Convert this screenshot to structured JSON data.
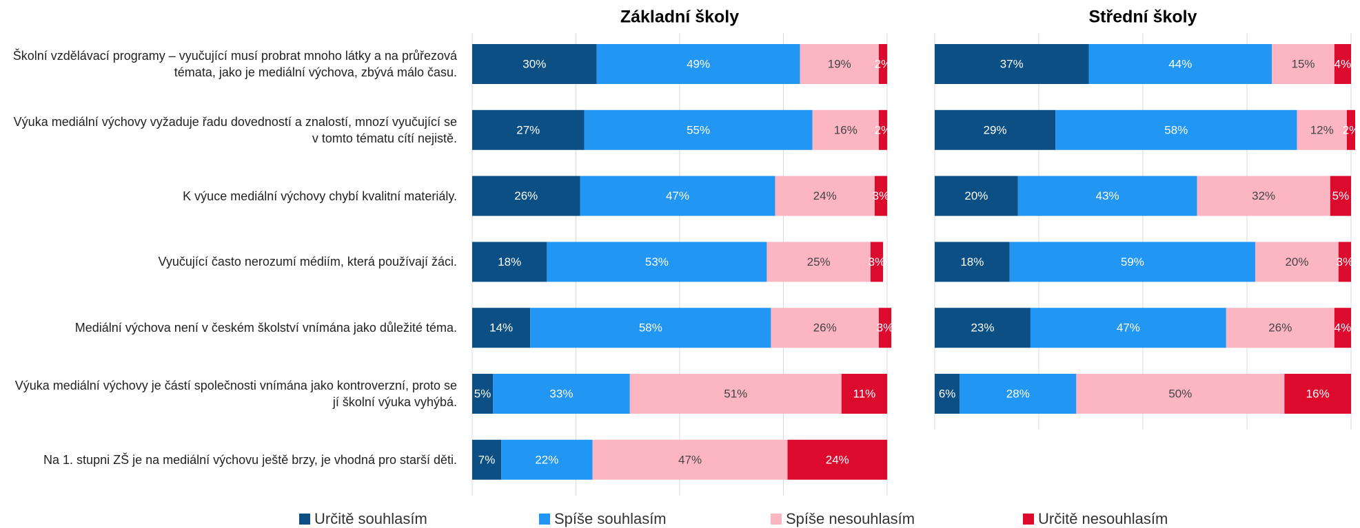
{
  "chart_data": [
    {
      "type": "stacked-bar",
      "orientation": "horizontal",
      "title": "Základní školy",
      "categories": [
        "Školní vzdělávací programy – vyučující musí probrat mnoho látky a na průřezová témata, jako je mediální výchova, zbývá málo času.",
        "Výuka mediální výchovy vyžaduje řadu dovedností a znalostí, mnozí vyučující se v tomto tématu cítí nejistě.",
        "K výuce mediální výchovy chybí kvalitní materiály.",
        "Vyučující často nerozumí médiím, která používají žáci.",
        "Mediální výchova není v českém školství vnímána jako důležité téma.",
        "Výuka mediální výchovy je částí společnosti vnímána jako kontroverzní, proto se jí školní výuka vyhýbá.",
        "Na 1. stupni ZŠ je na mediální výchovu ještě brzy, je vhodná pro starší děti."
      ],
      "xlim": [
        0,
        100
      ],
      "xticks": [
        0,
        25,
        50,
        75,
        100
      ],
      "grid": true,
      "series": [
        {
          "name": "Určitě souhlasím",
          "color": "#0b4f85",
          "values": [
            30,
            27,
            26,
            18,
            14,
            5,
            7
          ],
          "value_labels": [
            "30%",
            "27%",
            "26%",
            "18%",
            "14%",
            "5%",
            "7%"
          ]
        },
        {
          "name": "Spíše souhlasím",
          "color": "#2196f3",
          "values": [
            49,
            55,
            47,
            53,
            58,
            33,
            22
          ],
          "value_labels": [
            "49%",
            "55%",
            "47%",
            "53%",
            "58%",
            "33%",
            "22%"
          ]
        },
        {
          "name": "Spíše nesouhlasím",
          "color": "#fbb6c1",
          "values": [
            19,
            16,
            24,
            25,
            26,
            51,
            47
          ],
          "value_labels": [
            "19%",
            "16%",
            "24%",
            "25%",
            "26%",
            "51%",
            "47%"
          ]
        },
        {
          "name": "Určitě nesouhlasím",
          "color": "#dc0a2d",
          "values": [
            2,
            2,
            3,
            3,
            3,
            11,
            24
          ],
          "value_labels": [
            "2%",
            "2%",
            "3%",
            "3%",
            "3%",
            "11%",
            "24%"
          ]
        }
      ]
    },
    {
      "type": "stacked-bar",
      "orientation": "horizontal",
      "title": "Střední školy",
      "xlim": [
        0,
        100
      ],
      "xticks": [
        0,
        25,
        50,
        75,
        100
      ],
      "grid": true,
      "series": [
        {
          "color": "#0b4f85",
          "values": [
            37,
            29,
            20,
            18,
            23,
            6
          ],
          "value_labels": [
            "37%",
            "29%",
            "20%",
            "18%",
            "23%",
            "6%"
          ]
        },
        {
          "color": "#2196f3",
          "values": [
            44,
            58,
            43,
            59,
            47,
            28
          ],
          "value_labels": [
            "44%",
            "58%",
            "43%",
            "59%",
            "47%",
            "28%"
          ]
        },
        {
          "color": "#fbb6c1",
          "values": [
            15,
            12,
            32,
            20,
            26,
            50
          ],
          "value_labels": [
            "15%",
            "12%",
            "32%",
            "20%",
            "26%",
            "50%"
          ]
        },
        {
          "color": "#dc0a2d",
          "values": [
            4,
            2,
            5,
            3,
            4,
            16
          ],
          "value_labels": [
            "4%",
            "2%",
            "5%",
            "3%",
            "4%",
            "16%"
          ]
        }
      ]
    }
  ]
}
